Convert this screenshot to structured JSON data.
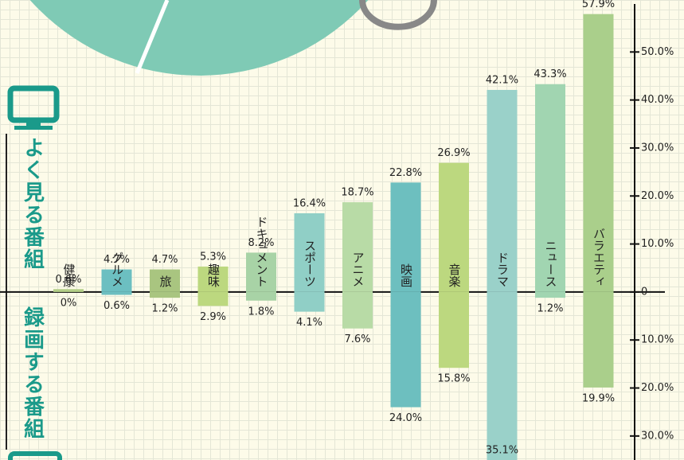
{
  "chart_data": {
    "type": "diverging-bar",
    "legend": [
      "よく見る番組",
      "録画する番組"
    ],
    "categories": [
      "健康",
      "グルメ",
      "旅",
      "趣味",
      "ドキュメント",
      "スポーツ",
      "アニメ",
      "映画",
      "音楽",
      "ドラマ",
      "ニュース",
      "バラエティ"
    ],
    "colors": [
      "#b3cf88",
      "#6cbfc1",
      "#a9c580",
      "#bcd87f",
      "#a8d3a6",
      "#90cfc6",
      "#b8dba6",
      "#6dbfbf",
      "#bcd87f",
      "#9ad1c9",
      "#a1d5b1",
      "#aacf8b"
    ],
    "series": [
      {
        "name": "よく見る番組",
        "values": [
          0.6,
          4.7,
          4.7,
          5.3,
          8.2,
          16.4,
          18.7,
          22.8,
          26.9,
          42.1,
          43.3,
          57.9
        ],
        "value_labels": [
          "0.6%",
          "4.7%",
          "4.7%",
          "5.3%",
          "8.2%",
          "16.4%",
          "18.7%",
          "22.8%",
          "26.9%",
          "42.1%",
          "43.3%",
          "57.9%"
        ]
      },
      {
        "name": "録画する番組",
        "values": [
          0,
          -0.6,
          -1.2,
          -2.9,
          -1.8,
          -4.1,
          -7.6,
          -24.0,
          -15.8,
          -35.1,
          -1.2,
          -19.9
        ],
        "value_labels": [
          "0%",
          "0.6%",
          "1.2%",
          "2.9%",
          "1.8%",
          "4.1%",
          "7.6%",
          "24.0%",
          "15.8%",
          "35.1%",
          "1.2%",
          "19.9%"
        ]
      }
    ],
    "ylim": [
      -35,
      60
    ],
    "yticks": [
      {
        "value": 50,
        "label": "50.0%"
      },
      {
        "value": 40,
        "label": "40.0%"
      },
      {
        "value": 30,
        "label": "30.0%"
      },
      {
        "value": 20,
        "label": "20.0%"
      },
      {
        "value": 10,
        "label": "10.0%"
      },
      0,
      {
        "value": -10,
        "label": "10.0%"
      },
      {
        "value": -20,
        "label": "20.0%"
      },
      {
        "value": -30,
        "label": "30.0%"
      }
    ]
  }
}
